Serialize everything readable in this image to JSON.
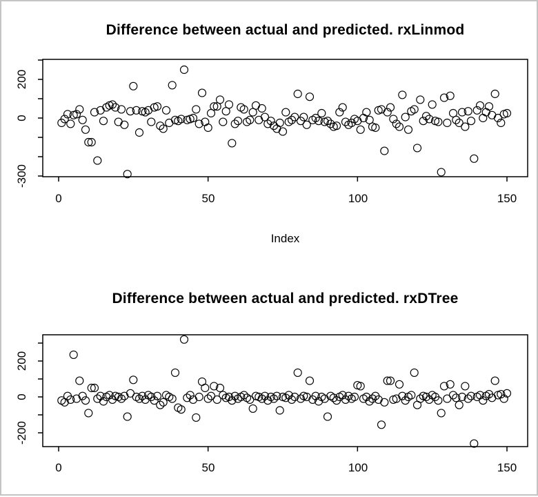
{
  "window": {
    "background": "#ffffff",
    "border_color": "#c4c4c4",
    "axis_color": "#000000",
    "marker_color": "#000000"
  },
  "chart_data": [
    {
      "type": "scatter",
      "title": "Difference between actual and predicted. rxLinmod",
      "xlabel": "Index",
      "ylabel": "",
      "marker": "open-circle",
      "grid": false,
      "legend": null,
      "xlim": [
        -5,
        157
      ],
      "ylim": [
        -303,
        303
      ],
      "x_ticks": [
        0,
        50,
        100,
        150
      ],
      "y_ticks": [
        300,
        200,
        100,
        0,
        -100,
        -200,
        -300
      ],
      "y_tick_labels_shown": [
        "200",
        "0",
        "-300"
      ],
      "points": [
        [
          1,
          -25
        ],
        [
          2,
          -5
        ],
        [
          3,
          20
        ],
        [
          4,
          -30
        ],
        [
          5,
          15
        ],
        [
          6,
          20
        ],
        [
          7,
          45
        ],
        [
          8,
          -10
        ],
        [
          9,
          -60
        ],
        [
          10,
          -125
        ],
        [
          11,
          -125
        ],
        [
          12,
          30
        ],
        [
          13,
          -220
        ],
        [
          14,
          40
        ],
        [
          15,
          -15
        ],
        [
          16,
          55
        ],
        [
          17,
          65
        ],
        [
          18,
          70
        ],
        [
          19,
          55
        ],
        [
          20,
          -20
        ],
        [
          21,
          45
        ],
        [
          22,
          -35
        ],
        [
          23,
          -290
        ],
        [
          24,
          35
        ],
        [
          25,
          165
        ],
        [
          26,
          40
        ],
        [
          27,
          -75
        ],
        [
          28,
          35
        ],
        [
          29,
          30
        ],
        [
          30,
          40
        ],
        [
          31,
          -20
        ],
        [
          32,
          55
        ],
        [
          33,
          60
        ],
        [
          34,
          -40
        ],
        [
          35,
          -55
        ],
        [
          36,
          40
        ],
        [
          37,
          -25
        ],
        [
          38,
          170
        ],
        [
          39,
          -10
        ],
        [
          40,
          -15
        ],
        [
          41,
          -5
        ],
        [
          42,
          250
        ],
        [
          43,
          -10
        ],
        [
          44,
          -5
        ],
        [
          45,
          0
        ],
        [
          46,
          45
        ],
        [
          47,
          -30
        ],
        [
          48,
          130
        ],
        [
          49,
          -20
        ],
        [
          50,
          -50
        ],
        [
          51,
          25
        ],
        [
          52,
          60
        ],
        [
          53,
          60
        ],
        [
          54,
          95
        ],
        [
          55,
          -20
        ],
        [
          56,
          35
        ],
        [
          57,
          70
        ],
        [
          58,
          -130
        ],
        [
          59,
          -30
        ],
        [
          60,
          -15
        ],
        [
          61,
          55
        ],
        [
          62,
          45
        ],
        [
          63,
          -20
        ],
        [
          64,
          -10
        ],
        [
          65,
          30
        ],
        [
          66,
          65
        ],
        [
          67,
          -10
        ],
        [
          68,
          50
        ],
        [
          69,
          5
        ],
        [
          70,
          -30
        ],
        [
          71,
          -15
        ],
        [
          72,
          -40
        ],
        [
          73,
          -55
        ],
        [
          74,
          -25
        ],
        [
          75,
          -70
        ],
        [
          76,
          30
        ],
        [
          77,
          -20
        ],
        [
          78,
          -10
        ],
        [
          79,
          5
        ],
        [
          80,
          125
        ],
        [
          81,
          -15
        ],
        [
          82,
          5
        ],
        [
          83,
          -35
        ],
        [
          84,
          110
        ],
        [
          85,
          -10
        ],
        [
          86,
          0
        ],
        [
          87,
          -15
        ],
        [
          88,
          25
        ],
        [
          89,
          -20
        ],
        [
          90,
          -15
        ],
        [
          91,
          -30
        ],
        [
          92,
          -45
        ],
        [
          93,
          -40
        ],
        [
          94,
          30
        ],
        [
          95,
          55
        ],
        [
          96,
          -20
        ],
        [
          97,
          -35
        ],
        [
          98,
          -25
        ],
        [
          99,
          -5
        ],
        [
          100,
          -15
        ],
        [
          101,
          -60
        ],
        [
          102,
          0
        ],
        [
          103,
          30
        ],
        [
          104,
          -10
        ],
        [
          105,
          -45
        ],
        [
          106,
          -50
        ],
        [
          107,
          40
        ],
        [
          108,
          45
        ],
        [
          109,
          -170
        ],
        [
          110,
          30
        ],
        [
          111,
          55
        ],
        [
          112,
          -5
        ],
        [
          113,
          -30
        ],
        [
          114,
          -45
        ],
        [
          115,
          120
        ],
        [
          116,
          5
        ],
        [
          117,
          -60
        ],
        [
          118,
          35
        ],
        [
          119,
          45
        ],
        [
          120,
          -155
        ],
        [
          121,
          95
        ],
        [
          122,
          -15
        ],
        [
          123,
          10
        ],
        [
          124,
          -5
        ],
        [
          125,
          70
        ],
        [
          126,
          -15
        ],
        [
          127,
          -20
        ],
        [
          128,
          -280
        ],
        [
          129,
          105
        ],
        [
          130,
          -25
        ],
        [
          131,
          115
        ],
        [
          132,
          25
        ],
        [
          133,
          -10
        ],
        [
          134,
          -25
        ],
        [
          135,
          30
        ],
        [
          136,
          -45
        ],
        [
          137,
          35
        ],
        [
          138,
          -15
        ],
        [
          139,
          -210
        ],
        [
          140,
          40
        ],
        [
          141,
          65
        ],
        [
          142,
          0
        ],
        [
          143,
          30
        ],
        [
          144,
          60
        ],
        [
          145,
          15
        ],
        [
          146,
          125
        ],
        [
          147,
          0
        ],
        [
          148,
          -25
        ],
        [
          149,
          20
        ],
        [
          150,
          25
        ]
      ]
    },
    {
      "type": "scatter",
      "title": "Difference between actual and predicted. rxDTree",
      "xlabel": "",
      "ylabel": "",
      "marker": "open-circle",
      "grid": false,
      "legend": null,
      "xlim": [
        -5,
        157
      ],
      "ylim": [
        -277,
        346
      ],
      "x_ticks": [
        0,
        50,
        100,
        150
      ],
      "y_ticks": [
        300,
        200,
        100,
        0,
        -100,
        -200
      ],
      "y_tick_labels_shown": [
        "200",
        "0",
        "-200"
      ],
      "points": [
        [
          1,
          -20
        ],
        [
          2,
          -30
        ],
        [
          3,
          5
        ],
        [
          4,
          -15
        ],
        [
          5,
          235
        ],
        [
          6,
          -10
        ],
        [
          7,
          90
        ],
        [
          8,
          5
        ],
        [
          9,
          -20
        ],
        [
          10,
          -90
        ],
        [
          11,
          50
        ],
        [
          12,
          50
        ],
        [
          13,
          -10
        ],
        [
          14,
          5
        ],
        [
          15,
          -25
        ],
        [
          16,
          0
        ],
        [
          17,
          10
        ],
        [
          18,
          -15
        ],
        [
          19,
          5
        ],
        [
          20,
          0
        ],
        [
          21,
          -10
        ],
        [
          22,
          5
        ],
        [
          23,
          -110
        ],
        [
          24,
          20
        ],
        [
          25,
          95
        ],
        [
          26,
          0
        ],
        [
          27,
          -10
        ],
        [
          28,
          5
        ],
        [
          29,
          -15
        ],
        [
          30,
          10
        ],
        [
          31,
          0
        ],
        [
          32,
          -20
        ],
        [
          33,
          5
        ],
        [
          34,
          -45
        ],
        [
          35,
          -30
        ],
        [
          36,
          10
        ],
        [
          37,
          0
        ],
        [
          38,
          -10
        ],
        [
          39,
          135
        ],
        [
          40,
          -60
        ],
        [
          41,
          -70
        ],
        [
          42,
          320
        ],
        [
          43,
          -5
        ],
        [
          44,
          10
        ],
        [
          45,
          -15
        ],
        [
          46,
          -115
        ],
        [
          47,
          0
        ],
        [
          48,
          85
        ],
        [
          49,
          50
        ],
        [
          50,
          -10
        ],
        [
          51,
          5
        ],
        [
          52,
          60
        ],
        [
          53,
          -15
        ],
        [
          54,
          50
        ],
        [
          55,
          10
        ],
        [
          56,
          -5
        ],
        [
          57,
          0
        ],
        [
          58,
          -20
        ],
        [
          59,
          5
        ],
        [
          60,
          -10
        ],
        [
          61,
          0
        ],
        [
          62,
          10
        ],
        [
          63,
          -5
        ],
        [
          64,
          -15
        ],
        [
          65,
          -65
        ],
        [
          66,
          5
        ],
        [
          67,
          0
        ],
        [
          68,
          -10
        ],
        [
          69,
          5
        ],
        [
          70,
          -20
        ],
        [
          71,
          0
        ],
        [
          72,
          -10
        ],
        [
          73,
          5
        ],
        [
          74,
          -75
        ],
        [
          75,
          0
        ],
        [
          76,
          -5
        ],
        [
          77,
          10
        ],
        [
          78,
          -15
        ],
        [
          79,
          0
        ],
        [
          80,
          135
        ],
        [
          81,
          -10
        ],
        [
          82,
          5
        ],
        [
          83,
          0
        ],
        [
          84,
          90
        ],
        [
          85,
          -15
        ],
        [
          86,
          5
        ],
        [
          87,
          -25
        ],
        [
          88,
          0
        ],
        [
          89,
          -10
        ],
        [
          90,
          -110
        ],
        [
          91,
          5
        ],
        [
          92,
          -5
        ],
        [
          93,
          -20
        ],
        [
          94,
          0
        ],
        [
          95,
          10
        ],
        [
          96,
          -15
        ],
        [
          97,
          5
        ],
        [
          98,
          -10
        ],
        [
          99,
          0
        ],
        [
          100,
          65
        ],
        [
          101,
          60
        ],
        [
          102,
          -10
        ],
        [
          103,
          0
        ],
        [
          104,
          -25
        ],
        [
          105,
          -10
        ],
        [
          106,
          5
        ],
        [
          107,
          -15
        ],
        [
          108,
          -155
        ],
        [
          109,
          -30
        ],
        [
          110,
          90
        ],
        [
          111,
          90
        ],
        [
          112,
          -15
        ],
        [
          113,
          -10
        ],
        [
          114,
          70
        ],
        [
          115,
          5
        ],
        [
          116,
          -20
        ],
        [
          117,
          0
        ],
        [
          118,
          10
        ],
        [
          119,
          135
        ],
        [
          120,
          -45
        ],
        [
          121,
          -10
        ],
        [
          122,
          5
        ],
        [
          123,
          0
        ],
        [
          124,
          -15
        ],
        [
          125,
          10
        ],
        [
          126,
          0
        ],
        [
          127,
          -20
        ],
        [
          128,
          -90
        ],
        [
          129,
          60
        ],
        [
          130,
          -10
        ],
        [
          131,
          70
        ],
        [
          132,
          10
        ],
        [
          133,
          -5
        ],
        [
          134,
          -45
        ],
        [
          135,
          0
        ],
        [
          136,
          60
        ],
        [
          137,
          -10
        ],
        [
          138,
          5
        ],
        [
          139,
          -260
        ],
        [
          140,
          0
        ],
        [
          141,
          10
        ],
        [
          142,
          -20
        ],
        [
          143,
          5
        ],
        [
          144,
          15
        ],
        [
          145,
          -5
        ],
        [
          146,
          90
        ],
        [
          147,
          10
        ],
        [
          148,
          15
        ],
        [
          149,
          -10
        ],
        [
          150,
          20
        ]
      ]
    }
  ]
}
